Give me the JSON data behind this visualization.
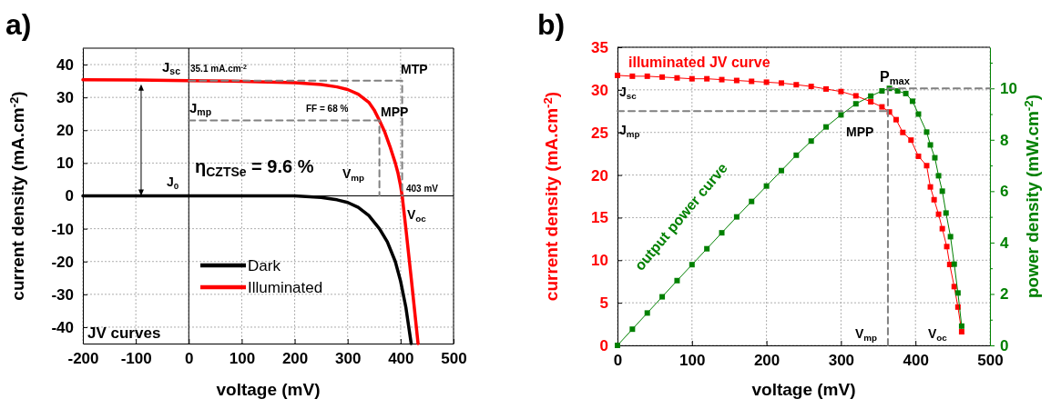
{
  "chart_data": [
    {
      "type": "line",
      "title": "a)",
      "xlabel": "voltage (mV)",
      "ylabel": "current density (mA.cm$^{-2}$)",
      "xlim": [
        -200,
        500
      ],
      "xticks": [
        -200,
        -100,
        0,
        100,
        200,
        300,
        400,
        500
      ],
      "ylim": [
        -45,
        45
      ],
      "yticks": [
        -40,
        -30,
        -20,
        -10,
        0,
        10,
        20,
        30,
        40
      ],
      "grid": true,
      "legend": "bottom",
      "series": [
        {
          "name": "Dark",
          "color": "#000000",
          "x": [
            -200,
            0,
            100,
            200,
            250,
            280,
            300,
            320,
            340,
            360,
            375,
            390,
            400,
            410,
            420
          ],
          "values": [
            0,
            0,
            0,
            0,
            -0.5,
            -1.2,
            -2,
            -3.5,
            -6,
            -10,
            -14,
            -20,
            -26,
            -34,
            -45
          ]
        },
        {
          "name": "Illuminated",
          "color": "#ff0000",
          "x": [
            -200,
            -100,
            0,
            100,
            200,
            250,
            280,
            300,
            320,
            340,
            350,
            360,
            370,
            380,
            390,
            395,
            400,
            403,
            410,
            420,
            433
          ],
          "values": [
            35.4,
            35.3,
            35.1,
            34.9,
            34.5,
            33.9,
            33.2,
            32.4,
            31,
            28.5,
            26.2,
            23,
            19.5,
            15,
            10,
            7,
            3,
            0,
            -10,
            -25,
            -45
          ]
        },
        {
          "color": "#808080",
          "line_style": "dashed",
          "x": [
            0,
            403,
            403
          ],
          "values": [
            35.1,
            35.1,
            0
          ]
        },
        {
          "color": "#808080",
          "line_style": "dashed",
          "x": [
            0,
            360,
            360
          ],
          "values": [
            23,
            23,
            0
          ]
        }
      ],
      "annotations": [
        "J$_{sc}$",
        "35.1 mA.cm$^{-2}$",
        "MTP",
        "J$_{mp}$",
        "FF = 68 %",
        "MPP",
        "η$_{CZTSe}$ = 9.6 %",
        "J$_{0}$",
        "V$_{mp}$",
        "403 mV",
        "V$_{oc}$",
        "JV curves"
      ]
    },
    {
      "type": "line",
      "title": "b)",
      "xlabel": "voltage (mV)",
      "ylabel": "current density (mA.cm$^{-2}$)",
      "y2label": "power density (mW.cm$^{-2}$)",
      "xlim": [
        0,
        500
      ],
      "xticks": [
        0,
        100,
        200,
        300,
        400,
        500
      ],
      "ylim": [
        0,
        35
      ],
      "yticks": [
        0,
        5,
        10,
        15,
        20,
        25,
        30,
        35
      ],
      "y2lim": [
        0,
        11.6
      ],
      "y2ticks": [
        0,
        {
          "value": 1,
          "label": null
        },
        2,
        {
          "value": 3,
          "label": null
        },
        4,
        {
          "value": 5,
          "label": null
        },
        6,
        {
          "value": 7,
          "label": null
        },
        8,
        {
          "value": 9,
          "label": null
        },
        10,
        {
          "value": 11,
          "label": null
        }
      ],
      "grid": true,
      "marker": "square",
      "series": [
        {
          "name": "illuminated JV curve",
          "color": "#ff0000",
          "x": [
            0,
            20,
            40,
            60,
            80,
            100,
            120,
            140,
            160,
            180,
            200,
            220,
            240,
            260,
            280,
            300,
            320,
            340,
            355,
            365,
            374,
            383,
            394,
            404,
            415,
            420,
            425,
            431,
            436,
            442,
            446,
            452,
            457,
            462
          ],
          "values": [
            31.7,
            31.6,
            31.6,
            31.5,
            31.4,
            31.3,
            31.3,
            31.2,
            31.1,
            31,
            30.9,
            30.8,
            30.6,
            30.4,
            30.1,
            29.8,
            29.3,
            28.6,
            28,
            27.4,
            26.5,
            25,
            24.1,
            22.2,
            21.1,
            18.6,
            17.1,
            15.4,
            13.7,
            11.6,
            9.5,
            6.9,
            4.5,
            1.6
          ]
        },
        {
          "name": "output power curve",
          "color": "#008000",
          "axis": "y2",
          "x": [
            0,
            20,
            40,
            60,
            80,
            100,
            120,
            140,
            160,
            180,
            200,
            220,
            240,
            260,
            280,
            300,
            320,
            340,
            355,
            365,
            376,
            387,
            396,
            404,
            415,
            420,
            426,
            431,
            436,
            441,
            447,
            452,
            457,
            462
          ],
          "values": [
            0,
            0.63,
            1.26,
            1.89,
            2.52,
            3.14,
            3.76,
            4.38,
            5,
            5.6,
            6.2,
            6.8,
            7.4,
            7.95,
            8.5,
            8.97,
            9.4,
            9.7,
            9.9,
            10,
            9.9,
            9.8,
            9.5,
            9,
            8.3,
            7.8,
            7.3,
            6.6,
            6,
            5.15,
            4.23,
            3.16,
            2.04,
            0.75
          ]
        },
        {
          "color": "#808080",
          "line_style": "dashed",
          "marker": "none",
          "x": [
            0,
            363
          ],
          "values": [
            27.5,
            27.5
          ]
        },
        {
          "color": "#808080",
          "line_style": "dashed",
          "marker": "none",
          "x": [
            363,
            363
          ],
          "values": [
            0,
            30
          ]
        },
        {
          "color": "#808080",
          "line_style": "dashed",
          "marker": "none",
          "axis": "y2",
          "x": [
            363,
            500
          ],
          "values": [
            10,
            10
          ]
        }
      ],
      "annotations": [
        "J$_{sc}$",
        "J$_{mp}$",
        "P$_{max}$",
        "MPP",
        "V$_{mp}$",
        "V$_{oc}$"
      ]
    }
  ]
}
